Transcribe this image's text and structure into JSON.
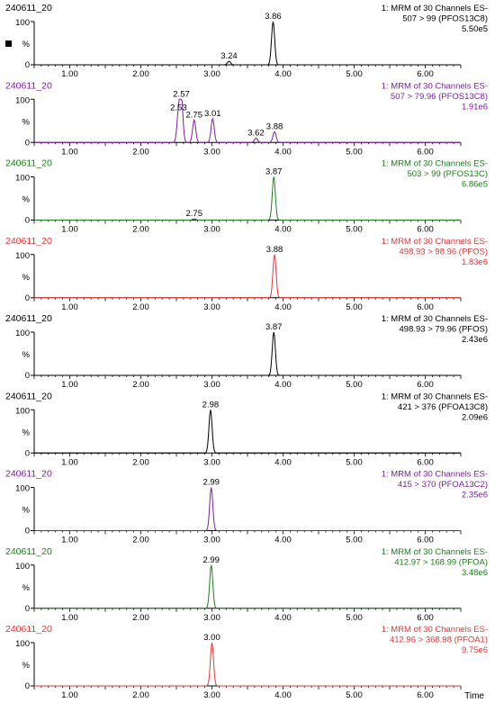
{
  "time_label": "Time",
  "colors": {
    "black": "#000000",
    "purple": "#7b1fa2",
    "green": "#1b7f1b",
    "red": "#e53935"
  },
  "chart_data": [
    {
      "type": "line",
      "color": "black",
      "sample": "240611_20",
      "header": [
        "1: MRM of 30 Channels ES-",
        "507 > 99 (PFOS13C8)",
        "5.50e5"
      ],
      "yticks": [
        "100",
        "%",
        "0"
      ],
      "xticks": [
        "1.00",
        "2.00",
        "3.00",
        "4.00",
        "5.00",
        "6.00"
      ],
      "xlim": [
        0.5,
        6.5
      ],
      "ylim": [
        0,
        100
      ],
      "peaks": [
        {
          "rt": 3.24,
          "height": 8,
          "label": "3.24"
        },
        {
          "rt": 3.86,
          "height": 100,
          "label": "3.86"
        }
      ]
    },
    {
      "type": "line",
      "color": "purple",
      "sample": "240611_20",
      "header": [
        "1: MRM of 30 Channels ES-",
        "507 > 79.96 (PFOS13C8)",
        "1.91e6"
      ],
      "yticks": [
        "100",
        "%",
        "0"
      ],
      "xticks": [
        "1.00",
        "2.00",
        "3.00",
        "4.00",
        "5.00",
        "6.00"
      ],
      "xlim": [
        0.5,
        6.5
      ],
      "ylim": [
        0,
        100
      ],
      "peaks": [
        {
          "rt": 2.53,
          "height": 68,
          "label": "2.53"
        },
        {
          "rt": 2.57,
          "height": 100,
          "label": "2.57"
        },
        {
          "rt": 2.75,
          "height": 52,
          "label": "2.75"
        },
        {
          "rt": 3.01,
          "height": 55,
          "label": "3.01"
        },
        {
          "rt": 3.62,
          "height": 10,
          "label": "3.62"
        },
        {
          "rt": 3.88,
          "height": 25,
          "label": "3.88"
        }
      ]
    },
    {
      "type": "line",
      "color": "green",
      "sample": "240611_20",
      "header": [
        "1: MRM of 30 Channels ES-",
        "503 > 99 (PFOS13C)",
        "6.86e5"
      ],
      "yticks": [
        "100",
        "%",
        "0"
      ],
      "xticks": [
        "1.00",
        "2.00",
        "3.00",
        "4.00",
        "5.00",
        "6.00"
      ],
      "xlim": [
        0.5,
        6.5
      ],
      "ylim": [
        0,
        100
      ],
      "peaks": [
        {
          "rt": 2.75,
          "height": 3,
          "label": "2.75"
        },
        {
          "rt": 3.87,
          "height": 100,
          "label": "3.87"
        }
      ]
    },
    {
      "type": "line",
      "color": "red",
      "sample": "240611_20",
      "header": [
        "1: MRM of 30 Channels ES-",
        "498.93 > 98.96 (PFOS)",
        "1.83e6"
      ],
      "yticks": [
        "100",
        "%",
        "0"
      ],
      "xticks": [
        "1.00",
        "2.00",
        "3.00",
        "4.00",
        "5.00",
        "6.00"
      ],
      "xlim": [
        0.5,
        6.5
      ],
      "ylim": [
        0,
        100
      ],
      "peaks": [
        {
          "rt": 3.88,
          "height": 100,
          "label": "3.88"
        }
      ]
    },
    {
      "type": "line",
      "color": "black",
      "sample": "240611_20",
      "header": [
        "1: MRM of 30 Channels ES-",
        "498.93 > 79.96 (PFOS)",
        "2.43e6"
      ],
      "yticks": [
        "100",
        "%",
        "0"
      ],
      "xticks": [
        "1.00",
        "2.00",
        "3.00",
        "4.00",
        "5.00",
        "6.00"
      ],
      "xlim": [
        0.5,
        6.5
      ],
      "ylim": [
        0,
        100
      ],
      "peaks": [
        {
          "rt": 3.87,
          "height": 100,
          "label": "3.87"
        }
      ]
    },
    {
      "type": "line",
      "color": "black",
      "sample": "240611_20",
      "header": [
        "1: MRM of 30 Channels ES-",
        "421 > 376 (PFOA13C8)",
        "2.09e6"
      ],
      "yticks": [
        "100",
        "%",
        "0"
      ],
      "xticks": [
        "1.00",
        "2.00",
        "3.00",
        "4.00",
        "5.00",
        "6.00"
      ],
      "xlim": [
        0.5,
        6.5
      ],
      "ylim": [
        0,
        100
      ],
      "peaks": [
        {
          "rt": 2.98,
          "height": 100,
          "label": "2.98"
        }
      ]
    },
    {
      "type": "line",
      "color": "purple",
      "sample": "240611_20",
      "header": [
        "1: MRM of 30 Channels ES-",
        "415 > 370 (PFOA13C2)",
        "2.35e6"
      ],
      "yticks": [
        "100",
        "%",
        "0"
      ],
      "xticks": [
        "1.00",
        "2.00",
        "3.00",
        "4.00",
        "5.00",
        "6.00"
      ],
      "xlim": [
        0.5,
        6.5
      ],
      "ylim": [
        0,
        100
      ],
      "peaks": [
        {
          "rt": 2.99,
          "height": 100,
          "label": "2.99"
        }
      ]
    },
    {
      "type": "line",
      "color": "green",
      "sample": "240611_20",
      "header": [
        "1: MRM of 30 Channels ES-",
        "412.97 > 168.99 (PFOA)",
        "3.48e6"
      ],
      "yticks": [
        "100",
        "%",
        "0"
      ],
      "xticks": [
        "1.00",
        "2.00",
        "3.00",
        "4.00",
        "5.00",
        "6.00"
      ],
      "xlim": [
        0.5,
        6.5
      ],
      "ylim": [
        0,
        100
      ],
      "peaks": [
        {
          "rt": 2.99,
          "height": 100,
          "label": "2.99"
        }
      ]
    },
    {
      "type": "line",
      "color": "red",
      "sample": "240611_20",
      "header": [
        "1: MRM of 30 Channels ES-",
        "412.96 > 368.98 (PFOA1)",
        "9.75e6"
      ],
      "yticks": [
        "100",
        "%",
        "0"
      ],
      "xticks": [
        "1.00",
        "2.00",
        "3.00",
        "4.00",
        "5.00",
        "6.00"
      ],
      "xlim": [
        0.5,
        6.5
      ],
      "ylim": [
        0,
        100
      ],
      "peaks": [
        {
          "rt": 3.0,
          "height": 100,
          "label": "3.00"
        }
      ]
    }
  ]
}
